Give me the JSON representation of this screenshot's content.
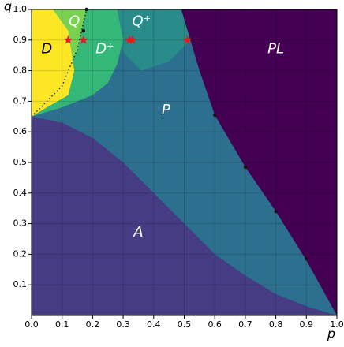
{
  "chart_data": {
    "type": "phase",
    "x_label": "p",
    "y_label": "q",
    "xlim": [
      0,
      1
    ],
    "ylim": [
      0,
      1
    ],
    "xticks": [
      {
        "value": 0,
        "label": "0.0"
      },
      {
        "value": 0.1,
        "label": "0.1"
      },
      {
        "value": 0.2,
        "label": "0.2"
      },
      {
        "value": 0.3,
        "label": "0.3"
      },
      {
        "value": 0.4,
        "label": "0.4"
      },
      {
        "value": 0.5,
        "label": "0.5"
      },
      {
        "value": 0.6,
        "label": "0.6"
      },
      {
        "value": 0.7,
        "label": "0.7"
      },
      {
        "value": 0.8,
        "label": "0.8"
      },
      {
        "value": 0.9,
        "label": "0.9"
      },
      {
        "value": 1,
        "label": "1.0"
      }
    ],
    "yticks": [
      {
        "value": 0.1,
        "label": "0.1"
      },
      {
        "value": 0.2,
        "label": "0.2"
      },
      {
        "value": 0.3,
        "label": "0.3"
      },
      {
        "value": 0.4,
        "label": "0.4"
      },
      {
        "value": 0.5,
        "label": "0.5"
      },
      {
        "value": 0.6,
        "label": "0.6"
      },
      {
        "value": 0.7,
        "label": "0.7"
      },
      {
        "value": 0.8,
        "label": "0.8"
      },
      {
        "value": 0.9,
        "label": "0.9"
      },
      {
        "value": 1,
        "label": "1.0"
      }
    ],
    "grid": true,
    "regions": [
      {
        "label": "P",
        "color": "#2d6f8e",
        "label_x": 0.44,
        "label_y": 0.67,
        "x": [
          0,
          1,
          1,
          0
        ],
        "y": [
          0,
          0,
          1,
          1
        ]
      },
      {
        "label": "A",
        "color": "#453c84",
        "label_x": 0.35,
        "label_y": 0.27,
        "x": [
          0,
          0,
          0.1,
          0.2,
          0.3,
          0.4,
          0.5,
          0.6,
          0.7,
          0.8,
          0.9,
          1
        ],
        "y": [
          0,
          0.65,
          0.63,
          0.58,
          0.5,
          0.4,
          0.3,
          0.2,
          0.13,
          0.07,
          0.03,
          0
        ]
      },
      {
        "label": "PL",
        "color": "#440154",
        "label_x": 0.8,
        "label_y": 0.87,
        "x": [
          0.49,
          1,
          1,
          0.9,
          0.8,
          0.7,
          0.6,
          0.55
        ],
        "y": [
          1,
          1,
          0,
          0.18,
          0.34,
          0.485,
          0.655,
          0.8
        ]
      },
      {
        "label": "Q⁺",
        "color": "#2a8c8a",
        "label_x": 0.36,
        "label_y": 0.96,
        "x": [
          0.27,
          0.49,
          0.52,
          0.45,
          0.36,
          0.3
        ],
        "y": [
          1,
          1,
          0.9,
          0.83,
          0.8,
          0.86
        ]
      },
      {
        "label": "D⁺",
        "color": "#35b779",
        "label_x": 0.24,
        "label_y": 0.87,
        "x": [
          0,
          0,
          0.28,
          0.3,
          0.28,
          0.25,
          0.2,
          0.1
        ],
        "y": [
          0.65,
          1,
          1,
          0.9,
          0.82,
          0.76,
          0.72,
          0.68
        ]
      },
      {
        "label": "Q",
        "color": "#7ad151",
        "label_x": 0.14,
        "label_y": 0.96,
        "x": [
          0,
          0,
          0.18,
          0.15,
          0.1
        ],
        "y": [
          0.65,
          1,
          1,
          0.87,
          0.75
        ]
      },
      {
        "label": "D",
        "color": "#fde725",
        "label_x": 0.05,
        "label_y": 0.87,
        "x": [
          0,
          0,
          0.07,
          0.12,
          0.14,
          0.12,
          0.05
        ],
        "y": [
          0.65,
          1,
          1,
          0.93,
          0.8,
          0.72,
          0.68
        ]
      }
    ],
    "series": [
      {
        "name": "boundary",
        "style": "dotted",
        "color": "#222222",
        "x": [
          0,
          0.05,
          0.1,
          0.15,
          0.18
        ],
        "y": [
          0.65,
          0.7,
          0.75,
          0.87,
          1
        ]
      },
      {
        "name": "stars",
        "style": "star",
        "color": "#e31a1c",
        "x": [
          0.12,
          0.17,
          0.32,
          0.33,
          0.51
        ],
        "y": [
          0.9,
          0.9,
          0.9,
          0.9,
          0.9
        ]
      },
      {
        "name": "points",
        "style": "dot",
        "color": "#111111",
        "x": [
          0.18,
          0.17,
          0.6,
          0.7,
          0.8,
          0.9
        ],
        "y": [
          1,
          0.93,
          0.655,
          0.485,
          0.34,
          0.185
        ]
      }
    ]
  }
}
